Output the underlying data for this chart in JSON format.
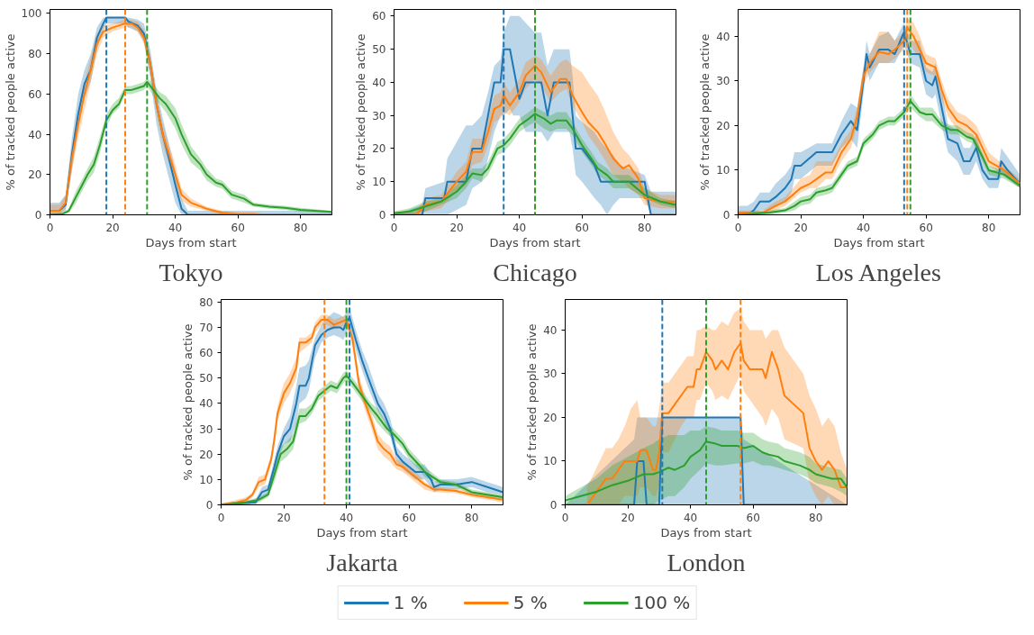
{
  "chart_data": [
    {
      "type": "line",
      "title": "Tokyo",
      "xlabel": "Days from start",
      "ylabel": "% of tracked people active",
      "xlim": [
        0,
        90
      ],
      "xticks": [
        0,
        20,
        40,
        60,
        80
      ],
      "ylim": [
        0,
        102
      ],
      "yticks": [
        0,
        20,
        40,
        60,
        80,
        100
      ],
      "line_style": "solid",
      "marker": "none",
      "legend": "bottom",
      "series": [
        {
          "name": "1 %",
          "color": "#1f77b4",
          "x": [
            0,
            3,
            5,
            7,
            9,
            11,
            13,
            15,
            17,
            18,
            24,
            25,
            28,
            30,
            32,
            34,
            36,
            38,
            40,
            42,
            44,
            90
          ],
          "values": [
            2,
            2,
            5,
            30,
            50,
            65,
            72,
            88,
            95,
            98,
            98,
            96,
            94,
            90,
            75,
            55,
            40,
            28,
            15,
            3,
            0,
            0
          ],
          "lower": [
            0,
            0,
            2,
            22,
            42,
            58,
            66,
            82,
            92,
            95,
            95,
            93,
            91,
            86,
            68,
            45,
            30,
            18,
            6,
            0,
            0,
            0
          ],
          "upper": [
            6,
            6,
            10,
            38,
            60,
            72,
            80,
            93,
            98,
            98,
            98,
            98,
            97,
            95,
            82,
            62,
            48,
            35,
            22,
            8,
            2,
            2
          ]
        },
        {
          "name": "5 %",
          "color": "#ff7f0e",
          "x": [
            0,
            3,
            5,
            7,
            9,
            11,
            13,
            15,
            17,
            20,
            24,
            26,
            28,
            30,
            32,
            34,
            36,
            38,
            40,
            42,
            45,
            50,
            55,
            60,
            65,
            70,
            90
          ],
          "values": [
            2,
            2,
            6,
            28,
            45,
            60,
            72,
            85,
            91,
            93,
            95,
            95,
            93,
            88,
            75,
            55,
            40,
            30,
            20,
            10,
            6,
            3,
            1,
            0.5,
            0.5,
            0,
            0
          ],
          "lower": [
            0,
            0,
            3,
            22,
            38,
            52,
            66,
            80,
            88,
            91,
            93,
            93,
            91,
            85,
            70,
            50,
            35,
            25,
            15,
            7,
            4,
            2,
            0,
            0,
            0,
            0,
            0
          ],
          "upper": [
            5,
            5,
            10,
            34,
            52,
            66,
            78,
            90,
            94,
            95,
            97,
            97,
            96,
            92,
            80,
            60,
            45,
            35,
            25,
            13,
            8,
            4,
            2,
            1,
            1,
            0.5,
            0.5
          ]
        },
        {
          "name": "100 %",
          "color": "#2ca02c",
          "x": [
            0,
            4,
            6,
            8,
            10,
            12,
            14,
            16,
            18,
            20,
            22,
            24,
            26,
            28,
            30,
            31,
            33,
            35,
            37,
            40,
            42,
            45,
            48,
            50,
            53,
            55,
            58,
            62,
            65,
            70,
            75,
            80,
            90
          ],
          "values": [
            0,
            0.5,
            2,
            8,
            14,
            20,
            25,
            35,
            47,
            52,
            55,
            62,
            62,
            63,
            64,
            66,
            62,
            58,
            55,
            48,
            40,
            30,
            25,
            20,
            16,
            15,
            10,
            8,
            5,
            4,
            3.5,
            2.5,
            1.5
          ],
          "lower": [
            0,
            0,
            1,
            5,
            11,
            17,
            21,
            31,
            44,
            50,
            53,
            60,
            60,
            61,
            62,
            64,
            59,
            55,
            51,
            43,
            35,
            26,
            22,
            17,
            14,
            13,
            8,
            6,
            4,
            3,
            2.5,
            1.5,
            1
          ],
          "upper": [
            1,
            1,
            3,
            11,
            17,
            23,
            29,
            39,
            50,
            55,
            58,
            64,
            64,
            65,
            66,
            68,
            65,
            61,
            59,
            53,
            45,
            34,
            28,
            23,
            18,
            17,
            12,
            10,
            6,
            5,
            4.5,
            3.5,
            2
          ]
        }
      ],
      "ref_lines": [
        {
          "axis": "x",
          "value": 18,
          "color": "#1f77b4",
          "line_style": "dashed"
        },
        {
          "axis": "x",
          "value": 24,
          "color": "#ff7f0e",
          "line_style": "dashed"
        },
        {
          "axis": "x",
          "value": 31,
          "color": "#2ca02c",
          "line_style": "dashed"
        }
      ]
    },
    {
      "type": "line",
      "title": "Chicago",
      "xlabel": "Days from start",
      "ylabel": "% of tracked people active",
      "xlim": [
        0,
        90
      ],
      "xticks": [
        0,
        20,
        40,
        60,
        80
      ],
      "ylim": [
        0,
        62
      ],
      "yticks": [
        0,
        10,
        20,
        30,
        40,
        50,
        60
      ],
      "line_style": "solid",
      "marker": "none",
      "series": [
        {
          "color": "#1f77b4",
          "x": [
            0,
            9,
            10,
            16,
            17,
            23,
            25,
            28,
            30,
            32,
            34,
            35,
            37,
            38,
            40,
            42,
            45,
            47,
            49,
            51,
            53,
            56,
            57,
            58,
            60,
            64,
            66,
            68,
            70,
            72,
            80,
            82,
            90
          ],
          "values": [
            0,
            0,
            5,
            5,
            10,
            10,
            20,
            20,
            30,
            40,
            40,
            50,
            50,
            45,
            35,
            40,
            40,
            40,
            30,
            40,
            40,
            40,
            30,
            20,
            20,
            15,
            10,
            10,
            10,
            10,
            10,
            0,
            0
          ],
          "lower": [
            0,
            0,
            0,
            0,
            0,
            3,
            8,
            10,
            17,
            25,
            30,
            30,
            32,
            30,
            30,
            25,
            25,
            25,
            22,
            25,
            25,
            25,
            20,
            12,
            10,
            5,
            3,
            0,
            3,
            5,
            5,
            0,
            0
          ],
          "upper": [
            0,
            3,
            8,
            10,
            17,
            27,
            27,
            30,
            37,
            45,
            47,
            55,
            60,
            60,
            60,
            58,
            55,
            55,
            45,
            50,
            50,
            50,
            42,
            30,
            28,
            25,
            22,
            20,
            18,
            15,
            12,
            7,
            7
          ]
        },
        {
          "color": "#ff7f0e",
          "x": [
            0,
            7,
            10,
            15,
            20,
            23,
            25,
            28,
            30,
            32,
            34,
            35,
            37,
            40,
            42,
            45,
            47,
            50,
            53,
            55,
            57,
            60,
            62,
            65,
            67,
            70,
            73,
            75,
            78,
            80,
            85,
            90
          ],
          "values": [
            0,
            0,
            3,
            4,
            10,
            13,
            19,
            19,
            25,
            32,
            33,
            36,
            33,
            37,
            42,
            45,
            43,
            37,
            41,
            41,
            36,
            31,
            28,
            25,
            22,
            17,
            14,
            15,
            11,
            5,
            4,
            4
          ],
          "lower": [
            0,
            0,
            1,
            2,
            7,
            9,
            15,
            16,
            21,
            28,
            29,
            31,
            30,
            34,
            38,
            41,
            39,
            34,
            37,
            38,
            33,
            28,
            24,
            20,
            17,
            12,
            10,
            8,
            6,
            3,
            2,
            2
          ],
          "upper": [
            1,
            1,
            5,
            6,
            13,
            16,
            23,
            23,
            29,
            36,
            37,
            40,
            37,
            41,
            46,
            48,
            47,
            42,
            46,
            47,
            45,
            43,
            40,
            36,
            32,
            25,
            20,
            18,
            14,
            8,
            6,
            6
          ]
        },
        {
          "color": "#2ca02c",
          "x": [
            0,
            5,
            10,
            15,
            20,
            23,
            25,
            28,
            30,
            33,
            35,
            37,
            40,
            43,
            45,
            48,
            50,
            52,
            55,
            57,
            60,
            63,
            65,
            68,
            70,
            75,
            80,
            85,
            90
          ],
          "values": [
            0.5,
            1,
            2.5,
            4,
            7,
            10,
            12.5,
            12,
            14,
            20,
            21,
            23,
            27,
            29,
            30.5,
            29,
            27.5,
            28.5,
            28.5,
            26,
            21,
            17,
            14,
            12,
            10,
            10,
            6,
            4,
            3
          ],
          "lower": [
            0,
            0,
            1,
            3,
            5,
            8,
            11,
            10,
            12,
            18,
            19,
            21,
            25,
            27,
            28,
            26,
            25,
            26,
            26,
            24,
            19,
            15,
            12,
            10,
            8,
            8,
            5,
            3,
            2
          ],
          "upper": [
            1,
            2,
            4,
            5,
            9,
            12,
            14,
            14,
            16,
            22,
            23,
            25,
            29,
            31,
            32.5,
            31,
            30,
            31,
            31,
            28,
            23,
            19,
            16,
            14,
            12,
            12,
            8,
            5,
            4
          ]
        }
      ],
      "ref_lines": [
        {
          "axis": "x",
          "value": 35,
          "color": "#1f77b4",
          "line_style": "dashed"
        },
        {
          "axis": "x",
          "value": 45,
          "color": "#ff7f0e",
          "line_style": "dashed"
        },
        {
          "axis": "x",
          "value": 45,
          "color": "#2ca02c",
          "line_style": "dashed"
        }
      ]
    },
    {
      "type": "line",
      "title": "Los Angeles",
      "xlabel": "Days from start",
      "ylabel": "% of tracked people active",
      "xlim": [
        0,
        90
      ],
      "xticks": [
        0,
        20,
        40,
        60,
        80
      ],
      "ylim": [
        0,
        46
      ],
      "yticks": [
        0,
        10,
        20,
        30,
        40
      ],
      "line_style": "solid",
      "marker": "none",
      "series": [
        {
          "color": "#1f77b4",
          "x": [
            0,
            3,
            5,
            7,
            10,
            12,
            15,
            17,
            18,
            20,
            25,
            30,
            33,
            36,
            38,
            40,
            41,
            42,
            45,
            48,
            50,
            53,
            55,
            58,
            60,
            62,
            63,
            65,
            67,
            70,
            72,
            74,
            76,
            78,
            80,
            83,
            84,
            86,
            90
          ],
          "values": [
            0,
            0,
            1,
            3,
            3,
            4,
            6,
            8,
            11,
            11,
            14,
            14,
            18,
            21,
            19,
            30,
            36,
            33,
            37,
            37,
            36,
            41,
            36,
            36,
            30,
            29,
            31,
            24,
            17,
            16,
            12,
            12,
            15,
            10,
            8,
            8,
            12,
            10,
            7
          ],
          "lower": [
            0,
            0,
            0,
            1,
            1,
            2,
            3,
            5,
            8,
            8,
            11,
            11,
            15,
            17,
            15,
            27,
            33,
            30,
            34,
            34,
            34,
            38,
            34,
            33,
            27,
            26,
            27,
            20,
            14,
            12,
            9,
            9,
            12,
            8,
            6,
            6,
            9,
            8,
            6
          ],
          "upper": [
            2,
            2,
            3,
            5,
            5,
            7,
            9,
            11,
            14,
            14,
            16,
            16,
            21,
            25,
            24,
            33,
            39,
            36,
            40,
            41,
            39,
            43,
            39,
            39,
            33,
            32,
            34,
            28,
            20,
            19,
            15,
            15,
            18,
            13,
            10,
            10,
            15,
            13,
            9
          ]
        },
        {
          "color": "#ff7f0e",
          "x": [
            0,
            8,
            12,
            15,
            20,
            23,
            25,
            28,
            30,
            33,
            36,
            38,
            40,
            42,
            45,
            48,
            50,
            53,
            54,
            56,
            58,
            60,
            63,
            65,
            67,
            70,
            73,
            76,
            78,
            80,
            85,
            90
          ],
          "values": [
            0.5,
            0.5,
            2,
            3,
            6,
            7,
            8,
            9.5,
            9.5,
            14,
            17,
            22,
            31,
            34,
            36.5,
            36,
            37,
            39,
            42,
            40,
            37,
            34,
            33,
            28,
            24,
            21,
            20,
            18,
            15,
            12,
            10,
            7
          ],
          "lower": [
            0,
            0,
            1,
            2,
            5,
            6,
            6,
            8,
            8,
            12,
            15,
            20,
            29,
            32,
            34,
            34,
            35,
            37,
            40,
            37,
            35,
            32,
            31,
            26,
            22,
            19,
            18,
            16,
            13,
            11,
            9,
            6
          ],
          "upper": [
            1,
            1,
            3,
            4,
            8,
            9,
            12,
            12,
            12,
            16,
            19,
            24,
            33,
            36,
            41,
            41,
            39,
            41,
            44,
            43,
            40,
            36,
            35,
            30,
            26,
            23,
            22,
            20,
            17,
            14,
            11,
            8
          ]
        },
        {
          "color": "#2ca02c",
          "x": [
            0,
            10,
            15,
            18,
            20,
            23,
            25,
            28,
            30,
            33,
            35,
            38,
            40,
            43,
            45,
            48,
            50,
            53,
            55,
            58,
            60,
            62,
            65,
            68,
            70,
            73,
            75,
            78,
            80,
            85,
            90
          ],
          "values": [
            0,
            0.5,
            1,
            2,
            3,
            3.5,
            5,
            5.5,
            6,
            9,
            11,
            12,
            16,
            18,
            20,
            21,
            21,
            23,
            25.5,
            23,
            22.5,
            22.5,
            20,
            19,
            19,
            17.5,
            17,
            13,
            10,
            9,
            6.5
          ],
          "lower": [
            0,
            0,
            0.5,
            1,
            2,
            2.5,
            4,
            4.5,
            5,
            8,
            10,
            11,
            15,
            17,
            19,
            20,
            20,
            22,
            24,
            22,
            21,
            21,
            19,
            18,
            18,
            16.5,
            16,
            12,
            9,
            8,
            6
          ],
          "upper": [
            0.5,
            1,
            1.5,
            3,
            4,
            4.5,
            6,
            6.5,
            7,
            10,
            12,
            13,
            17,
            19,
            21,
            22,
            22,
            24,
            27,
            24,
            24,
            24,
            21,
            20,
            20,
            18.5,
            18,
            14,
            11,
            10,
            7.5
          ]
        }
      ],
      "ref_lines": [
        {
          "axis": "x",
          "value": 53,
          "color": "#1f77b4",
          "line_style": "dashed"
        },
        {
          "axis": "x",
          "value": 54,
          "color": "#ff7f0e",
          "line_style": "dashed"
        },
        {
          "axis": "x",
          "value": 55,
          "color": "#2ca02c",
          "line_style": "dashed"
        }
      ]
    },
    {
      "type": "line",
      "title": "Jakarta",
      "xlabel": "Days from start",
      "ylabel": "% of tracked people active",
      "xlim": [
        0,
        90
      ],
      "xticks": [
        0,
        20,
        40,
        60,
        80
      ],
      "ylim": [
        0,
        81
      ],
      "yticks": [
        0,
        10,
        20,
        30,
        40,
        50,
        60,
        70,
        80
      ],
      "line_style": "solid",
      "marker": "none",
      "series": [
        {
          "color": "#1f77b4",
          "x": [
            0,
            10,
            11,
            13,
            15,
            17,
            18,
            20,
            22,
            24,
            25,
            27,
            28,
            30,
            32,
            34,
            36,
            38,
            39,
            40,
            41,
            43,
            45,
            47,
            50,
            52,
            54,
            56,
            58,
            60,
            62,
            65,
            67,
            68,
            70,
            75,
            80,
            85,
            90
          ],
          "values": [
            0,
            1,
            1,
            5,
            6,
            15,
            20,
            27,
            30,
            40,
            47,
            47,
            50,
            63,
            67,
            69,
            70,
            70,
            69,
            72,
            74,
            65,
            57,
            50,
            40,
            36,
            30,
            20,
            17,
            15,
            13,
            13,
            10,
            7,
            8,
            8,
            9,
            7,
            5
          ],
          "lower": [
            0,
            0,
            0,
            3,
            4,
            12,
            17,
            24,
            25,
            32,
            40,
            42,
            45,
            58,
            64,
            66,
            67,
            66,
            65,
            68,
            70,
            61,
            53,
            46,
            37,
            33,
            27,
            17,
            14,
            12,
            10,
            10,
            7,
            5,
            6,
            6,
            7,
            5,
            4
          ],
          "upper": [
            0.5,
            2,
            2,
            7,
            8,
            18,
            23,
            30,
            35,
            47,
            54,
            55,
            57,
            66,
            71,
            74,
            76,
            75,
            74,
            76,
            78,
            69,
            61,
            55,
            44,
            40,
            34,
            23,
            20,
            18,
            16,
            16,
            12,
            9,
            10,
            10,
            11,
            9,
            7
          ]
        },
        {
          "color": "#ff7f0e",
          "x": [
            0,
            5,
            8,
            10,
            12,
            14,
            16,
            17,
            18,
            20,
            22,
            24,
            25,
            27,
            29,
            30,
            32,
            34,
            36,
            38,
            40,
            42,
            44,
            46,
            48,
            50,
            52,
            54,
            56,
            58,
            60,
            63,
            65,
            68,
            70,
            75,
            80,
            85,
            90
          ],
          "values": [
            0,
            1,
            2,
            4,
            9,
            10,
            18,
            26,
            36,
            44,
            48,
            54,
            64,
            64,
            66,
            70,
            73,
            73,
            71,
            72,
            73,
            65,
            48,
            40,
            33,
            25,
            22,
            20,
            16,
            15,
            13,
            10,
            8,
            6,
            6,
            5.5,
            4,
            3,
            2
          ],
          "lower": [
            0,
            0.5,
            1,
            3,
            7,
            8,
            16,
            23,
            33,
            40,
            44,
            50,
            60,
            62,
            64,
            68,
            71,
            71,
            69,
            70,
            71,
            62,
            45,
            37,
            30,
            22,
            19,
            17,
            14,
            13,
            11,
            8,
            6,
            5,
            5,
            4.5,
            3,
            2,
            1
          ],
          "upper": [
            0.5,
            2,
            3,
            5,
            11,
            12,
            20,
            29,
            39,
            48,
            52,
            58,
            66,
            66,
            68,
            72,
            75,
            75,
            73,
            74,
            75,
            68,
            51,
            43,
            36,
            28,
            25,
            23,
            18,
            17,
            15,
            12,
            9,
            7,
            7,
            6.5,
            5,
            4,
            3
          ]
        },
        {
          "color": "#2ca02c",
          "x": [
            0,
            8,
            12,
            15,
            17,
            19,
            21,
            23,
            25,
            27,
            29,
            31,
            33,
            35,
            37,
            39,
            40,
            42,
            45,
            48,
            50,
            53,
            55,
            58,
            60,
            63,
            65,
            70,
            75,
            80,
            85,
            90
          ],
          "values": [
            0,
            1,
            2,
            4,
            12,
            20,
            22,
            25,
            35,
            35,
            38,
            43,
            45,
            47,
            46,
            50,
            51,
            48,
            43,
            38,
            35,
            30,
            28,
            24,
            20,
            16,
            13,
            9,
            8,
            5,
            4,
            3
          ],
          "lower": [
            0,
            0,
            1,
            3,
            9,
            17,
            19,
            22,
            32,
            33,
            36,
            41,
            43,
            45,
            44,
            48,
            49,
            46,
            41,
            36,
            32,
            28,
            26,
            22,
            18,
            14,
            11,
            8,
            7,
            4,
            3,
            2
          ],
          "upper": [
            0.5,
            1.5,
            3,
            5,
            15,
            23,
            25,
            28,
            38,
            38,
            40,
            45,
            47,
            49,
            48,
            52,
            53,
            50,
            45,
            40,
            38,
            32,
            30,
            26,
            22,
            18,
            15,
            10,
            9,
            6,
            5,
            4
          ]
        }
      ],
      "ref_lines": [
        {
          "axis": "x",
          "value": 33,
          "color": "#ff7f0e",
          "line_style": "dashed"
        },
        {
          "axis": "x",
          "value": 40,
          "color": "#2ca02c",
          "line_style": "dashed"
        },
        {
          "axis": "x",
          "value": 41,
          "color": "#1f77b4",
          "line_style": "dashed"
        }
      ]
    },
    {
      "type": "line",
      "title": "London",
      "xlabel": "Days from start",
      "ylabel": "% of tracked people active",
      "xlim": [
        0,
        90
      ],
      "xticks": [
        0,
        20,
        40,
        60,
        80
      ],
      "ylim": [
        0,
        47
      ],
      "yticks": [
        0,
        10,
        20,
        30,
        40
      ],
      "line_style": "solid",
      "marker": "none",
      "series": [
        {
          "color": "#1f77b4",
          "x": [
            0,
            22,
            23,
            25,
            26,
            29,
            30,
            31,
            56,
            57,
            90
          ],
          "values": [
            0,
            0,
            10,
            10,
            0,
            0,
            0,
            20,
            20,
            0,
            0
          ],
          "lower": [
            0,
            0,
            0,
            0,
            0,
            0,
            0,
            0,
            0,
            0,
            0
          ],
          "upper": [
            0,
            15,
            20,
            20,
            20,
            20,
            20,
            20,
            20,
            15,
            0
          ]
        },
        {
          "color": "#ff7f0e",
          "x": [
            7,
            9,
            11,
            13,
            15,
            17,
            19,
            21,
            23,
            24,
            26,
            28,
            29,
            30,
            31,
            33,
            35,
            37,
            39,
            41,
            42,
            43,
            45,
            47,
            48,
            50,
            52,
            54,
            56,
            57,
            59,
            63,
            64,
            66,
            68,
            70,
            76,
            78,
            80,
            82,
            84,
            86,
            88,
            90
          ],
          "values": [
            0,
            2,
            4,
            6,
            6,
            8,
            10,
            10,
            10,
            12.5,
            12.5,
            8,
            8,
            12,
            21,
            21,
            23,
            25,
            27,
            27,
            31,
            31,
            35,
            33,
            31,
            33,
            31,
            35,
            37,
            33,
            31,
            31,
            29,
            35,
            31,
            25,
            21,
            13,
            10,
            8,
            10,
            8,
            4,
            4
          ],
          "lower": [
            0,
            0,
            0,
            0,
            0,
            0,
            2,
            2,
            2,
            4,
            4,
            2,
            2,
            5,
            12,
            12,
            15,
            18,
            20,
            20,
            24,
            24,
            28,
            26,
            24,
            25,
            24,
            27,
            30,
            26,
            24,
            20,
            18,
            22,
            20,
            15,
            13,
            5,
            2,
            0,
            2,
            0,
            0,
            0
          ],
          "upper": [
            4,
            7,
            10,
            13,
            13,
            15,
            18,
            22,
            24,
            20,
            20,
            18,
            18,
            22,
            28,
            28,
            30,
            32,
            34,
            34,
            40,
            40,
            41,
            40,
            40,
            42,
            41,
            44,
            45,
            42,
            40,
            40,
            38,
            40,
            40,
            36,
            30,
            25,
            22,
            18,
            20,
            18,
            12,
            8
          ]
        },
        {
          "color": "#2ca02c",
          "x": [
            0,
            5,
            10,
            15,
            20,
            25,
            28,
            30,
            33,
            35,
            38,
            40,
            43,
            45,
            48,
            50,
            55,
            57,
            60,
            63,
            65,
            68,
            70,
            75,
            78,
            80,
            85,
            88,
            90
          ],
          "values": [
            1,
            2,
            3,
            4.5,
            5.5,
            7,
            7,
            7.5,
            8.5,
            8,
            9,
            11,
            12.5,
            14.5,
            14,
            13.5,
            13.5,
            13,
            13.5,
            12,
            11.5,
            11,
            10,
            9,
            8,
            7,
            6,
            6,
            4
          ],
          "lower": [
            0,
            0,
            0,
            0,
            0,
            0,
            0,
            1,
            2,
            2,
            4,
            6,
            8,
            9.5,
            9,
            9,
            9.5,
            9.5,
            10,
            9,
            9,
            8.5,
            8,
            7,
            6,
            5,
            4,
            3,
            2
          ],
          "upper": [
            2,
            4,
            6,
            9,
            11,
            13,
            14,
            15,
            16,
            16,
            16,
            17,
            17,
            18,
            17.5,
            17,
            17,
            16.5,
            16.5,
            15,
            14.5,
            14,
            13,
            12,
            11,
            9.5,
            8.5,
            8,
            6
          ]
        }
      ],
      "ref_lines": [
        {
          "axis": "x",
          "value": 31,
          "color": "#1f77b4",
          "line_style": "dashed"
        },
        {
          "axis": "x",
          "value": 45,
          "color": "#2ca02c",
          "line_style": "dashed"
        },
        {
          "axis": "x",
          "value": 56,
          "color": "#ff7f0e",
          "line_style": "dashed"
        }
      ]
    }
  ]
}
